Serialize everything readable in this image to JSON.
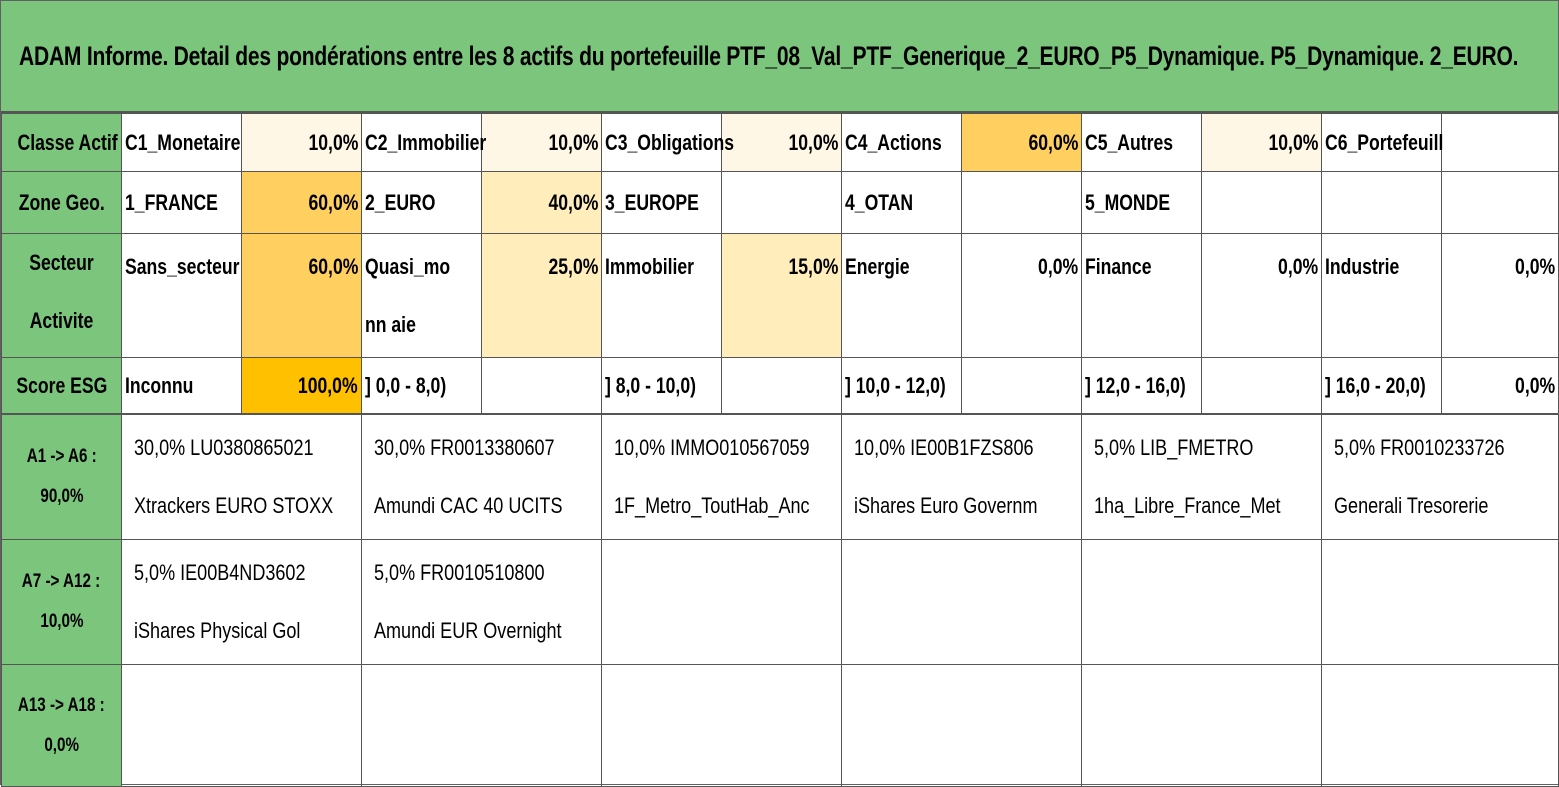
{
  "title": "ADAM Informe. Detail des pondérations entre les 8 actifs du portefeuille PTF_08_Val_PTF_Generique_2_EURO_P5_Dynamique. P5_Dynamique. 2_EURO.",
  "colors": {
    "header_green": "#7cc57c",
    "heat_light": "#fff7e6",
    "heat_mid": "#ffeebb",
    "heat_strong": "#ffd060",
    "heat_max": "#ffc000"
  },
  "classe_actif": {
    "header": "Classe Actif",
    "items": [
      {
        "label": "C1_Monetaire",
        "value": "10,0%"
      },
      {
        "label": "C2_Immobilier",
        "value": "10,0%"
      },
      {
        "label": "C3_Obligations",
        "value": "10,0%"
      },
      {
        "label": "C4_Actions",
        "value": "60,0%"
      },
      {
        "label": "C5_Autres",
        "value": "10,0%"
      },
      {
        "label": "C6_Portefeuill",
        "value": ""
      }
    ]
  },
  "zone_geo": {
    "header": "Zone Geo.",
    "items": [
      {
        "label": "1_FRANCE",
        "value": "60,0%"
      },
      {
        "label": "2_EURO",
        "value": "40,0%"
      },
      {
        "label": "3_EUROPE",
        "value": ""
      },
      {
        "label": "4_OTAN",
        "value": ""
      },
      {
        "label": "5_MONDE",
        "value": ""
      },
      {
        "label": "",
        "value": ""
      }
    ]
  },
  "secteur": {
    "header": "Secteur Activite",
    "items": [
      {
        "label": "Sans_secteur",
        "value": "60,0%"
      },
      {
        "label": "Quasi_monn aie",
        "value": "25,0%"
      },
      {
        "label": "Immobilier",
        "value": "15,0%"
      },
      {
        "label": "Energie",
        "value": "0,0%"
      },
      {
        "label": "Finance",
        "value": "0,0%"
      },
      {
        "label": "Industrie",
        "value": "0,0%"
      }
    ]
  },
  "score_esg": {
    "header": "Score ESG",
    "items": [
      {
        "label": "Inconnu",
        "value": "100,0%"
      },
      {
        "label": "] 0,0 - 8,0)",
        "value": ""
      },
      {
        "label": "] 8,0 - 10,0)",
        "value": ""
      },
      {
        "label": "] 10,0 - 12,0)",
        "value": ""
      },
      {
        "label": "] 12,0 - 16,0)",
        "value": ""
      },
      {
        "label": "] 16,0 - 20,0)",
        "value": "0,0%"
      }
    ]
  },
  "assets": [
    {
      "header_line1": "A1 -> A6 :",
      "header_line2": "90,0%",
      "items": [
        {
          "line1": "30,0% LU0380865021",
          "line2": "Xtrackers EURO STOXX"
        },
        {
          "line1": "30,0% FR0013380607",
          "line2": "Amundi CAC 40 UCITS"
        },
        {
          "line1": "10,0% IMMO010567059",
          "line2": "1F_Metro_ToutHab_Anc"
        },
        {
          "line1": "10,0% IE00B1FZS806",
          "line2": "iShares Euro Governm"
        },
        {
          "line1": "5,0% LIB_FMETRO",
          "line2": "1ha_Libre_France_Met"
        },
        {
          "line1": "5,0% FR0010233726",
          "line2": "Generali Tresorerie"
        }
      ]
    },
    {
      "header_line1": "A7 -> A12 :",
      "header_line2": "10,0%",
      "items": [
        {
          "line1": "5,0% IE00B4ND3602",
          "line2": "iShares Physical Gol"
        },
        {
          "line1": "5,0% FR0010510800",
          "line2": "Amundi EUR Overnight"
        },
        {
          "line1": "",
          "line2": ""
        },
        {
          "line1": "",
          "line2": ""
        },
        {
          "line1": "",
          "line2": ""
        },
        {
          "line1": "",
          "line2": ""
        }
      ]
    },
    {
      "header_line1": "A13 -> A18 :",
      "header_line2": "0,0%",
      "items": [
        {
          "line1": "",
          "line2": ""
        },
        {
          "line1": "",
          "line2": ""
        },
        {
          "line1": "",
          "line2": ""
        },
        {
          "line1": "",
          "line2": ""
        },
        {
          "line1": "",
          "line2": ""
        },
        {
          "line1": "",
          "line2": ""
        }
      ]
    }
  ]
}
